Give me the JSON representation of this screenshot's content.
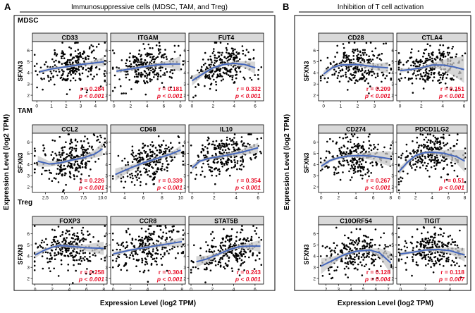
{
  "panel_a": {
    "letter": "A",
    "title": "Immunosuppressive cells (MDSC, TAM, and Treg)",
    "rows": [
      "MDSC",
      "TAM",
      "Treg"
    ],
    "y_axis_title": "Expression Level (log2 TPM)",
    "x_axis_title": "Expression Level (log2 TPM)"
  },
  "panel_b": {
    "letter": "B",
    "title": "Inhibition of T cell activation",
    "y_axis_title": "Expression Level (log2 TPM)",
    "x_axis_title": "Expression Level (log2 TPM)"
  },
  "y_gene": "SFXN3",
  "colors": {
    "points": "#000000",
    "fit": "#4466bb",
    "band": "#c8c8c8",
    "stats": "#e8102a",
    "strip": "#d9d9d9"
  },
  "chart_data": [
    {
      "type": "scatter",
      "panel": "A",
      "row": "MDSC",
      "gene": "CD33",
      "r": "r = 0.284",
      "p": "p < 0.001",
      "xlim": [
        -0.3,
        4.8
      ],
      "xticks": [
        "0",
        "1",
        "2",
        "3",
        "4"
      ],
      "ylim": [
        1.5,
        6.8
      ],
      "yticks": [
        "2",
        "3",
        "4",
        "5",
        "6"
      ],
      "fit": [
        [
          0.2,
          4.1
        ],
        [
          1,
          4.35
        ],
        [
          2,
          4.55
        ],
        [
          3,
          4.75
        ],
        [
          4,
          4.9
        ],
        [
          4.6,
          5.0
        ]
      ],
      "band": [
        0.15,
        0.15,
        0.12,
        0.12,
        0.25,
        0.45
      ]
    },
    {
      "type": "scatter",
      "panel": "A",
      "row": "MDSC",
      "gene": "ITGAM",
      "r": "r = 0.181",
      "p": "p < 0.001",
      "xlim": [
        -0.4,
        8.6
      ],
      "xticks": [
        "0",
        "2",
        "4",
        "6",
        "8"
      ],
      "ylim": [
        1.5,
        6.8
      ],
      "yticks": [
        "2",
        "3",
        "4",
        "5",
        "6"
      ],
      "fit": [
        [
          0.3,
          4.15
        ],
        [
          2,
          4.35
        ],
        [
          4,
          4.6
        ],
        [
          5.5,
          4.75
        ],
        [
          7,
          4.8
        ],
        [
          8,
          4.8
        ]
      ],
      "band": [
        0.2,
        0.12,
        0.12,
        0.18,
        0.4,
        0.7
      ]
    },
    {
      "type": "scatter",
      "panel": "A",
      "row": "MDSC",
      "gene": "FUT4",
      "r": "r = 0.332",
      "p": "p < 0.001",
      "xlim": [
        -0.3,
        6.8
      ],
      "xticks": [
        "0",
        "2",
        "4",
        "6"
      ],
      "ylim": [
        1.5,
        6.8
      ],
      "yticks": [
        "2",
        "3",
        "4",
        "5",
        "6"
      ],
      "fit": [
        [
          0,
          3.3
        ],
        [
          1,
          3.9
        ],
        [
          2,
          4.45
        ],
        [
          3,
          4.75
        ],
        [
          4,
          4.85
        ],
        [
          5,
          4.75
        ],
        [
          6,
          4.45
        ]
      ],
      "band": [
        0.45,
        0.2,
        0.12,
        0.12,
        0.15,
        0.3,
        0.55
      ]
    },
    {
      "type": "scatter",
      "panel": "A",
      "row": "TAM",
      "gene": "CCL2",
      "r": "r = 0.226",
      "p": "p < 0.001",
      "xlim": [
        0.8,
        10.6
      ],
      "xticks": [
        "2.5",
        "5.0",
        "7.5",
        "10.0"
      ],
      "ylim": [
        1.5,
        6.8
      ],
      "yticks": [
        "2",
        "3",
        "4",
        "5",
        "6"
      ],
      "fit": [
        [
          1.5,
          4.3
        ],
        [
          3,
          4.05
        ],
        [
          4.5,
          4.15
        ],
        [
          6,
          4.4
        ],
        [
          7.5,
          4.6
        ],
        [
          9,
          4.95
        ],
        [
          10,
          5.4
        ]
      ],
      "band": [
        0.5,
        0.25,
        0.15,
        0.12,
        0.15,
        0.35,
        0.6
      ]
    },
    {
      "type": "scatter",
      "panel": "A",
      "row": "TAM",
      "gene": "CD68",
      "r": "r = 0.339",
      "p": "p < 0.001",
      "xlim": [
        2.5,
        10.5
      ],
      "xticks": [
        "4",
        "6",
        "8",
        "10"
      ],
      "ylim": [
        1.5,
        6.8
      ],
      "yticks": [
        "2",
        "3",
        "4",
        "5",
        "6"
      ],
      "fit": [
        [
          3,
          3.1
        ],
        [
          4.5,
          3.65
        ],
        [
          6,
          4.15
        ],
        [
          7.5,
          4.55
        ],
        [
          9,
          4.95
        ],
        [
          10,
          5.3
        ]
      ],
      "band": [
        0.55,
        0.3,
        0.15,
        0.12,
        0.2,
        0.4
      ]
    },
    {
      "type": "scatter",
      "panel": "A",
      "row": "TAM",
      "gene": "IL10",
      "r": "r = 0.354",
      "p": "p < 0.001",
      "xlim": [
        -0.3,
        6.5
      ],
      "xticks": [
        "0",
        "2",
        "4",
        "6"
      ],
      "ylim": [
        1.5,
        6.8
      ],
      "yticks": [
        "2",
        "3",
        "4",
        "5",
        "6"
      ],
      "fit": [
        [
          0,
          3.7
        ],
        [
          0.7,
          4.3
        ],
        [
          1.5,
          4.55
        ],
        [
          3,
          4.8
        ],
        [
          4.5,
          5.1
        ],
        [
          6,
          5.5
        ]
      ],
      "band": [
        0.3,
        0.15,
        0.12,
        0.15,
        0.25,
        0.45
      ]
    },
    {
      "type": "scatter",
      "panel": "A",
      "row": "Treg",
      "gene": "FOXP3",
      "r": "r = 0.258",
      "p": "p < 0.001",
      "xlim": [
        -0.3,
        8.4
      ],
      "xticks": [
        "0",
        "2",
        "4",
        "6",
        "8"
      ],
      "ylim": [
        1.5,
        6.8
      ],
      "yticks": [
        "2",
        "3",
        "4",
        "5",
        "6"
      ],
      "fit": [
        [
          0,
          4.1
        ],
        [
          1,
          4.5
        ],
        [
          2,
          4.8
        ],
        [
          3,
          4.95
        ],
        [
          4.5,
          4.85
        ],
        [
          6,
          4.75
        ],
        [
          8,
          4.7
        ]
      ],
      "band": [
        0.3,
        0.15,
        0.12,
        0.12,
        0.15,
        0.3,
        0.6
      ]
    },
    {
      "type": "scatter",
      "panel": "A",
      "row": "Treg",
      "gene": "CCR8",
      "r": "r = 0.304",
      "p": "p < 0.001",
      "xlim": [
        -0.3,
        8.4
      ],
      "xticks": [
        "0",
        "2",
        "4",
        "6",
        "8"
      ],
      "ylim": [
        1.5,
        6.8
      ],
      "yticks": [
        "2",
        "3",
        "4",
        "5",
        "6"
      ],
      "fit": [
        [
          0,
          4.2
        ],
        [
          2,
          4.55
        ],
        [
          4,
          4.8
        ],
        [
          6,
          5.05
        ],
        [
          8,
          5.3
        ]
      ],
      "band": [
        0.2,
        0.12,
        0.12,
        0.2,
        0.4
      ]
    },
    {
      "type": "scatter",
      "panel": "A",
      "row": "Treg",
      "gene": "STAT5B",
      "r": "r = 0.243",
      "p": "p < 0.001",
      "xlim": [
        -0.2,
        6.8
      ],
      "xticks": [
        "0",
        "2",
        "4",
        "6"
      ],
      "ylim": [
        1.5,
        6.8
      ],
      "yticks": [
        "2",
        "3",
        "4",
        "5",
        "6"
      ],
      "fit": [
        [
          0.5,
          3.5
        ],
        [
          1.5,
          3.75
        ],
        [
          2.5,
          4.15
        ],
        [
          3.5,
          4.55
        ],
        [
          4.5,
          4.85
        ],
        [
          5.5,
          4.9
        ],
        [
          6.5,
          4.9
        ]
      ],
      "band": [
        0.5,
        0.3,
        0.15,
        0.12,
        0.15,
        0.3,
        0.55
      ]
    },
    {
      "type": "scatter",
      "panel": "B",
      "row": "1",
      "gene": "CD28",
      "r": "r = 0.209",
      "p": "p < 0.001",
      "xlim": [
        -0.3,
        4.1
      ],
      "xticks": [
        "0",
        "1",
        "2",
        "3"
      ],
      "ylim": [
        1.5,
        6.8
      ],
      "yticks": [
        "2",
        "3",
        "4",
        "5",
        "6"
      ],
      "fit": [
        [
          0,
          3.9
        ],
        [
          0.5,
          4.45
        ],
        [
          1,
          4.7
        ],
        [
          2,
          4.75
        ],
        [
          3,
          4.55
        ],
        [
          3.8,
          4.45
        ]
      ],
      "band": [
        0.3,
        0.15,
        0.12,
        0.15,
        0.3,
        0.5
      ]
    },
    {
      "type": "scatter",
      "panel": "B",
      "row": "1",
      "gene": "CTLA4",
      "r": "r = 0.151",
      "p": "p < 0.001",
      "xlim": [
        -0.3,
        6.3
      ],
      "xticks": [
        "0",
        "2",
        "4",
        "6"
      ],
      "ylim": [
        1.5,
        6.8
      ],
      "yticks": [
        "2",
        "3",
        "4",
        "5",
        "6"
      ],
      "fit": [
        [
          0,
          4.2
        ],
        [
          1,
          4.3
        ],
        [
          2,
          4.45
        ],
        [
          3,
          4.7
        ],
        [
          4,
          4.7
        ],
        [
          5,
          4.55
        ],
        [
          6,
          4.3
        ]
      ],
      "band": [
        0.2,
        0.12,
        0.12,
        0.2,
        0.45,
        0.8,
        1.2
      ]
    },
    {
      "type": "scatter",
      "panel": "B",
      "row": "2",
      "gene": "CD274",
      "r": "r = 0.267",
      "p": "p < 0.001",
      "xlim": [
        -0.3,
        8.3
      ],
      "xticks": [
        "0",
        "2",
        "4",
        "6",
        "8"
      ],
      "ylim": [
        1.5,
        6.8
      ],
      "yticks": [
        "2",
        "3",
        "4",
        "5",
        "6"
      ],
      "fit": [
        [
          0,
          3.85
        ],
        [
          1,
          4.35
        ],
        [
          2,
          4.6
        ],
        [
          3,
          4.75
        ],
        [
          4.5,
          4.8
        ],
        [
          6,
          4.75
        ],
        [
          8,
          4.5
        ]
      ],
      "band": [
        0.3,
        0.15,
        0.12,
        0.12,
        0.2,
        0.4,
        0.7
      ]
    },
    {
      "type": "scatter",
      "panel": "B",
      "row": "2",
      "gene": "PDCD1LG2",
      "r": "r = 0.51",
      "p": "p < 0.001",
      "xlim": [
        -0.3,
        8.3
      ],
      "xticks": [
        "0",
        "2",
        "4",
        "6",
        "8"
      ],
      "ylim": [
        1.5,
        6.8
      ],
      "yticks": [
        "2",
        "3",
        "4",
        "5",
        "6"
      ],
      "fit": [
        [
          0,
          3.4
        ],
        [
          1,
          4.2
        ],
        [
          2,
          4.8
        ],
        [
          3,
          5.05
        ],
        [
          4,
          5.1
        ],
        [
          5.5,
          5.0
        ],
        [
          7,
          4.7
        ],
        [
          8,
          4.3
        ]
      ],
      "band": [
        0.35,
        0.2,
        0.12,
        0.12,
        0.15,
        0.3,
        0.6,
        1.0
      ]
    },
    {
      "type": "scatter",
      "panel": "B",
      "row": "3",
      "gene": "C10ORF54",
      "r": "r = 0.128",
      "p": "p = 0.004",
      "xlim": [
        1.4,
        7.4
      ],
      "xticks": [
        "2",
        "3",
        "4",
        "5",
        "6",
        "7"
      ],
      "ylim": [
        1.5,
        6.8
      ],
      "yticks": [
        "2",
        "3",
        "4",
        "5",
        "6"
      ],
      "fit": [
        [
          1.6,
          3.1
        ],
        [
          2.5,
          3.6
        ],
        [
          3.5,
          4.15
        ],
        [
          4.5,
          4.45
        ],
        [
          5.5,
          4.55
        ],
        [
          6.3,
          4.3
        ],
        [
          7.2,
          3.4
        ]
      ],
      "band": [
        0.7,
        0.35,
        0.15,
        0.12,
        0.15,
        0.4,
        1.0
      ]
    },
    {
      "type": "scatter",
      "panel": "B",
      "row": "3",
      "gene": "TIGIT",
      "r": "r = 0.118",
      "p": "p = 0.007",
      "xlim": [
        -0.3,
        5.4
      ],
      "xticks": [
        "0",
        "2",
        "4"
      ],
      "ylim": [
        1.5,
        6.8
      ],
      "yticks": [
        "2",
        "3",
        "4",
        "5",
        "6"
      ],
      "fit": [
        [
          0,
          4.2
        ],
        [
          1,
          4.35
        ],
        [
          2,
          4.55
        ],
        [
          3,
          4.6
        ],
        [
          4,
          4.5
        ],
        [
          5.2,
          4.1
        ]
      ],
      "band": [
        0.2,
        0.12,
        0.12,
        0.15,
        0.3,
        0.6
      ]
    }
  ]
}
